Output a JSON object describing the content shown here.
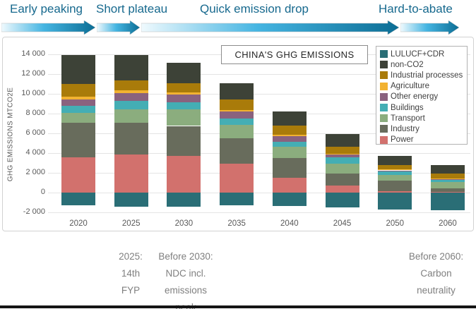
{
  "phases": [
    {
      "label": "Early peaking"
    },
    {
      "label": "Short plateau"
    },
    {
      "label": "Quick emission drop"
    },
    {
      "label": "Hard-to-abate"
    }
  ],
  "chart_data": {
    "type": "bar",
    "stacked": true,
    "title": "CHINA'S GHG EMISSIONS",
    "ylabel": "GHG EMISSIONS MTCO2E",
    "unit": "MtCO2e",
    "categories": [
      "2020",
      "2025",
      "2030",
      "2035",
      "2040",
      "2045",
      "2050",
      "2060"
    ],
    "ylim": [
      -2000,
      14000
    ],
    "grid": true,
    "legend_position": "top-right",
    "y_ticks": [
      {
        "value": 14000,
        "label": "14 000"
      },
      {
        "value": 12000,
        "label": "12 000"
      },
      {
        "value": 10000,
        "label": "10 000"
      },
      {
        "value": 8000,
        "label": "8 000"
      },
      {
        "value": 6000,
        "label": "6 000"
      },
      {
        "value": 4000,
        "label": "4 000"
      },
      {
        "value": 2000,
        "label": "2 000"
      },
      {
        "value": 0,
        "label": "0"
      },
      {
        "value": -2000,
        "label": "-2 000"
      }
    ],
    "series": [
      {
        "name": "LULUCF+CDR",
        "color": "#2a6e76",
        "negative": true,
        "values": [
          -1250,
          -1450,
          -1450,
          -1300,
          -1350,
          -1500,
          -1700,
          -1800
        ]
      },
      {
        "name": "non-CO2",
        "color": "#3d4237",
        "values": [
          2900,
          2550,
          2100,
          1650,
          1430,
          1270,
          950,
          870
        ]
      },
      {
        "name": "Industrial processes",
        "color": "#a97b0a",
        "values": [
          1250,
          1060,
          870,
          1100,
          890,
          730,
          450,
          500
        ]
      },
      {
        "name": "Agriculture",
        "color": "#f2b231",
        "values": [
          300,
          280,
          260,
          120,
          170,
          50,
          100,
          80
        ]
      },
      {
        "name": "Other energy",
        "color": "#8a627e",
        "values": [
          650,
          780,
          750,
          700,
          580,
          300,
          100,
          50
        ]
      },
      {
        "name": "Buildings",
        "color": "#44aeb4",
        "values": [
          700,
          820,
          760,
          660,
          480,
          650,
          350,
          250
        ]
      },
      {
        "name": "Transport",
        "color": "#8bad7e",
        "values": [
          1050,
          1350,
          1650,
          1350,
          1150,
          950,
          600,
          600
        ]
      },
      {
        "name": "Industry",
        "color": "#686c5c",
        "values": [
          3450,
          3250,
          3050,
          2600,
          2000,
          1250,
          1050,
          350
        ]
      },
      {
        "name": "Power",
        "color": "#d2716d",
        "values": [
          3600,
          3850,
          3700,
          2900,
          1500,
          700,
          150,
          100
        ]
      }
    ]
  },
  "annotations": [
    {
      "lines": [
        "2025:",
        "14th",
        "FYP"
      ]
    },
    {
      "lines": [
        "Before 2030:",
        "NDC incl.",
        "emissions",
        "peak"
      ]
    },
    {
      "lines": [
        "Before 2060:",
        "Carbon",
        "neutrality"
      ]
    }
  ],
  "colors": {
    "phase_text": "#17698e",
    "arrow_light": "#f0fafe",
    "arrow_mid": "#45b5e2",
    "arrow_dark": "#0b6d94",
    "axis_text": "#595959",
    "annotation_text": "#7f7f7f",
    "grid": "#e4e4e4"
  }
}
